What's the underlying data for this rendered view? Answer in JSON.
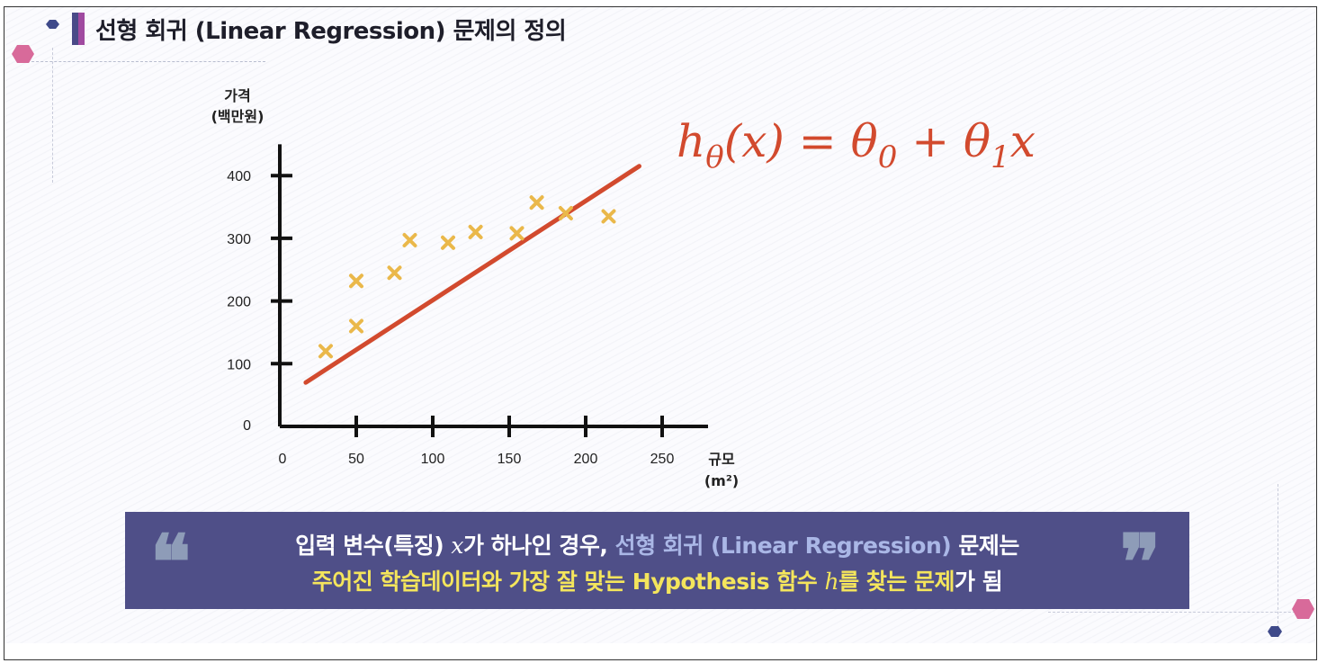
{
  "slide": {
    "title": "선형 회귀 (Linear Regression) 문제의 정의"
  },
  "formula": {
    "h": "h",
    "theta_sub": "θ",
    "rest": "(x) = θ",
    "sub0": "0",
    "plus": " + θ",
    "sub1": "1",
    "tail": "x"
  },
  "callout": {
    "line1_a": "입력 변수(특징) ",
    "line1_x": "x",
    "line1_b": "가 하나인 경우, ",
    "line1_hl": "선형 회귀 (Linear Regression)",
    "line1_c": " 문제는",
    "line2_hl1": "주어진 학습데이터와 가장 잘 맞는 ",
    "line2_bold": "Hypothesis 함수 ",
    "line2_h": "h",
    "line2_b": "를 찾는 문제",
    "line2_c": "가 됨",
    "quote_open": "❝",
    "quote_close": "❞"
  },
  "colors": {
    "accent_navy": "#4f4f88",
    "regression_line": "#d24a2e",
    "points": "#eab84a",
    "highlight_blue": "#aab7e6",
    "highlight_yellow": "#f4e55c"
  },
  "chart_data": {
    "type": "scatter",
    "ylabel_lines": [
      "가격",
      "(백만원)"
    ],
    "xlabel_lines": [
      "규모",
      "(m²)"
    ],
    "x_ticks": [
      0,
      50,
      100,
      150,
      200,
      250
    ],
    "y_ticks": [
      0,
      100,
      200,
      300,
      400
    ],
    "xlim": [
      0,
      280
    ],
    "ylim": [
      0,
      450
    ],
    "points": [
      {
        "x": 30,
        "y": 120
      },
      {
        "x": 50,
        "y": 160
      },
      {
        "x": 50,
        "y": 232
      },
      {
        "x": 75,
        "y": 245
      },
      {
        "x": 85,
        "y": 297
      },
      {
        "x": 110,
        "y": 293
      },
      {
        "x": 128,
        "y": 310
      },
      {
        "x": 155,
        "y": 308
      },
      {
        "x": 168,
        "y": 357
      },
      {
        "x": 187,
        "y": 340
      },
      {
        "x": 215,
        "y": 335
      }
    ],
    "regression_line": {
      "x": [
        17,
        235
      ],
      "y": [
        70,
        415
      ]
    },
    "grid": false
  }
}
